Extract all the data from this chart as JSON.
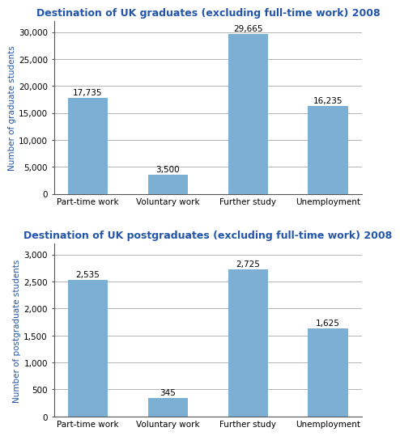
{
  "grad_title": "Destination of UK graduates (excluding full-time work) 2008",
  "postgrad_title": "Destination of UK postgraduates (excluding full-time work) 2008",
  "categories": [
    "Part-time work",
    "Voluntary work",
    "Further study",
    "Unemployment"
  ],
  "grad_values": [
    17735,
    3500,
    29665,
    16235
  ],
  "postgrad_values": [
    2535,
    345,
    2725,
    1625
  ],
  "grad_labels": [
    "17,735",
    "3,500",
    "29,665",
    "16,235"
  ],
  "postgrad_labels": [
    "2,535",
    "345",
    "2,725",
    "1,625"
  ],
  "bar_color": "#7bafd4",
  "grad_ylabel": "Number of graduate students",
  "postgrad_ylabel": "Number of postgraduate students",
  "grad_ylim": [
    0,
    32000
  ],
  "postgrad_ylim": [
    0,
    3200
  ],
  "grad_yticks": [
    0,
    5000,
    10000,
    15000,
    20000,
    25000,
    30000
  ],
  "postgrad_yticks": [
    0,
    500,
    1000,
    1500,
    2000,
    2500,
    3000
  ],
  "title_color": "#2255aa",
  "ylabel_color": "#2255aa",
  "title_fontsize": 9,
  "label_fontsize": 7.5,
  "ylabel_fontsize": 7.5,
  "xtick_fontsize": 7.5,
  "ytick_fontsize": 7.5,
  "background_color": "#ffffff",
  "grid_color": "#aaaaaa"
}
